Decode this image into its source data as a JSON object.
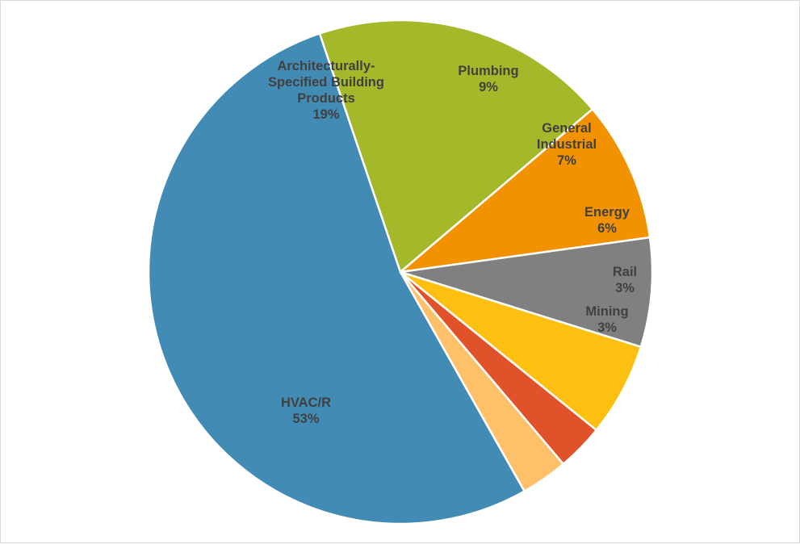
{
  "chart_data": {
    "type": "pie",
    "title": "",
    "legend": "none",
    "slices": [
      {
        "name": "HVAC/R",
        "value": 53,
        "label_lines": [
          "HVAC/R"
        ],
        "percent_label": "53%",
        "color": "#428bb5"
      },
      {
        "name": "Architecturally-Specified Building Products",
        "value": 19,
        "label_lines": [
          "Architecturally-",
          "Specified Building",
          "Products"
        ],
        "percent_label": "19%",
        "color": "#a5b82a"
      },
      {
        "name": "Plumbing",
        "value": 9,
        "label_lines": [
          "Plumbing"
        ],
        "percent_label": "9%",
        "color": "#f39200"
      },
      {
        "name": "General Industrial",
        "value": 7,
        "label_lines": [
          "General",
          "Industrial"
        ],
        "percent_label": "7%",
        "color": "#808080"
      },
      {
        "name": "Energy",
        "value": 6,
        "label_lines": [
          "Energy"
        ],
        "percent_label": "6%",
        "color": "#fdc010"
      },
      {
        "name": "Rail",
        "value": 3,
        "label_lines": [
          "Rail"
        ],
        "percent_label": "3%",
        "color": "#e0532a"
      },
      {
        "name": "Mining",
        "value": 3,
        "label_lines": [
          "Mining"
        ],
        "percent_label": "3%",
        "color": "#fec068"
      }
    ]
  }
}
